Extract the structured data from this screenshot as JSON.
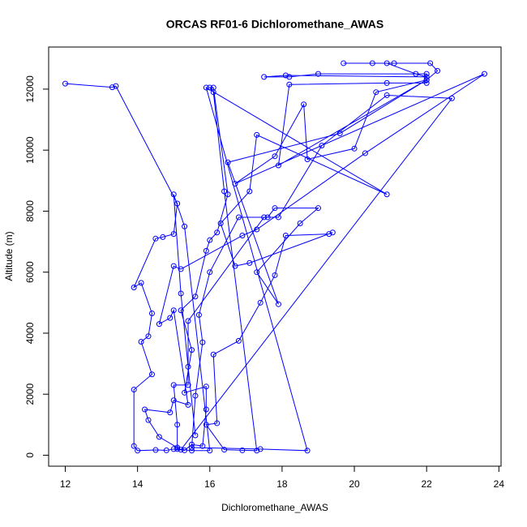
{
  "chart_data": {
    "type": "line",
    "title": "ORCAS RF01-6 Dichloromethane_AWAS",
    "x_label": "Dichloromethane_AWAS",
    "y_label": "Altitude (m)",
    "xlim": [
      11.54,
      24.06
    ],
    "ylim": [
      -360,
      13380
    ],
    "xticks": [
      12,
      14,
      16,
      18,
      20,
      22,
      24
    ],
    "yticks": [
      0,
      2000,
      4000,
      6000,
      8000,
      10000,
      12000
    ],
    "series": [
      {
        "color": "#0000ff",
        "x": [
          12.0,
          13.3,
          13.4,
          15.1,
          15.0,
          14.7,
          14.5,
          13.9,
          14.1,
          14.4,
          14.3,
          14.1,
          14.4,
          13.9,
          13.9,
          14.0,
          14.5,
          14.8,
          15.0,
          15.3,
          15.5,
          15.8,
          15.9,
          15.9,
          15.3,
          15.5,
          15.2,
          15.6,
          15.9,
          16.0,
          16.2,
          16.5,
          16.1,
          16.0,
          16.1,
          16.4,
          17.3,
          16.9,
          16.4,
          15.9,
          16.2,
          16.1,
          16.8,
          17.4,
          17.8,
          18.1,
          19.3,
          19.4,
          17.1,
          16.7,
          16.3,
          17.1,
          17.3,
          20.9,
          15.9,
          18.7,
          17.4,
          15.5,
          15.6,
          15.8,
          15.7,
          16.0,
          16.8,
          17.6,
          17.8,
          19.0,
          18.5,
          17.3,
          17.9,
          16.5,
          19.6,
          22.0,
          22.3,
          22.1,
          21.1,
          20.5,
          19.7,
          20.9,
          21.7,
          22.0,
          18.1,
          17.5,
          18.2,
          19.0,
          22.0,
          22.0,
          20.9,
          18.2,
          17.9,
          22.0,
          20.6,
          20.0,
          18.7,
          18.6,
          17.8,
          16.7,
          23.6,
          20.3,
          17.3,
          16.9,
          15.2,
          15.0,
          14.6,
          14.9,
          15.0,
          15.4,
          15.0,
          14.9,
          14.2,
          14.3,
          14.6,
          15.1,
          15.2,
          22.7,
          20.9,
          19.1,
          17.9,
          17.5,
          15.4,
          15.4,
          15.0,
          15.1,
          15.1,
          15.5,
          16.0,
          15.3,
          15.0,
          15.2,
          15.4,
          15.6
        ],
        "values": [
          12180,
          12060,
          12100,
          8250,
          7250,
          7150,
          7100,
          5500,
          5650,
          4650,
          3900,
          3720,
          2650,
          2150,
          300,
          150,
          170,
          160,
          200,
          160,
          350,
          300,
          1500,
          2250,
          2050,
          3450,
          4750,
          5200,
          6700,
          7050,
          7300,
          8550,
          12050,
          12050,
          11900,
          8650,
          150,
          160,
          180,
          1000,
          1050,
          3300,
          3750,
          5000,
          5900,
          7200,
          7250,
          7300,
          6300,
          6200,
          7600,
          8650,
          10500,
          8550,
          12050,
          150,
          200,
          250,
          1950,
          3700,
          4600,
          6000,
          7800,
          7800,
          8100,
          8100,
          7600,
          6000,
          4950,
          9600,
          10550,
          12300,
          12600,
          12850,
          12850,
          12850,
          12850,
          12850,
          12500,
          12400,
          12450,
          12400,
          12400,
          12500,
          12500,
          12200,
          12200,
          12150,
          9500,
          12300,
          11900,
          10050,
          9700,
          11500,
          9800,
          8900,
          12500,
          9900,
          7400,
          7200,
          6100,
          6200,
          4300,
          4500,
          4750,
          1650,
          1800,
          1400,
          1500,
          1150,
          600,
          250,
          180,
          11700,
          11800,
          10150,
          7800,
          7800,
          4400,
          2300,
          2300,
          1000,
          200,
          150,
          150,
          7500,
          8550,
          5300,
          2900,
          650
        ]
      }
    ]
  }
}
